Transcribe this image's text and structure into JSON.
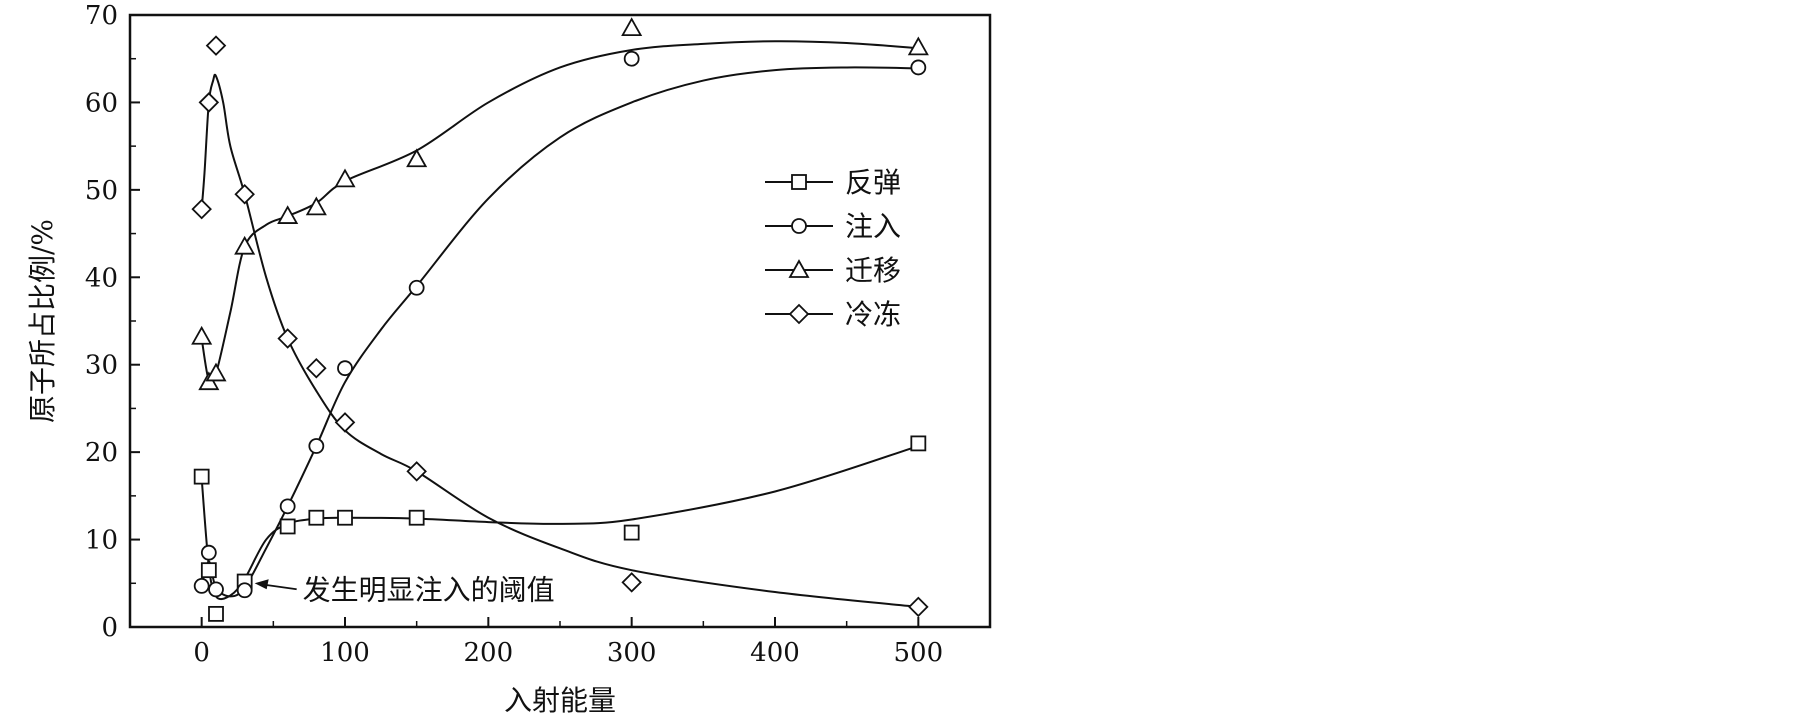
{
  "chart_data": {
    "type": "line",
    "xlabel": "入射能量",
    "ylabel": "原子所占比例/%",
    "xlim": [
      -50,
      550
    ],
    "ylim": [
      0,
      70
    ],
    "xticks": [
      0,
      100,
      200,
      300,
      400,
      500
    ],
    "yticks": [
      0,
      10,
      20,
      30,
      40,
      50,
      60,
      70
    ],
    "grid": false,
    "legend_position": "right",
    "series": [
      {
        "name": "反弹",
        "marker": "square",
        "x": [
          0,
          5,
          10,
          30,
          60,
          80,
          100,
          150,
          300,
          500
        ],
        "y": [
          17.2,
          6.5,
          1.5,
          5.2,
          11.5,
          12.5,
          12.5,
          12.5,
          10.8,
          21
        ]
      },
      {
        "name": "注入",
        "marker": "circle",
        "x": [
          0,
          5,
          10,
          30,
          60,
          80,
          100,
          150,
          300,
          500
        ],
        "y": [
          4.7,
          8.5,
          4.3,
          4.2,
          13.8,
          20.7,
          29.6,
          38.8,
          65,
          64
        ]
      },
      {
        "name": "迁移",
        "marker": "triangle",
        "x": [
          0,
          5,
          10,
          30,
          60,
          80,
          100,
          150,
          300,
          500
        ],
        "y": [
          33.2,
          28,
          29,
          43.5,
          47,
          48,
          51.2,
          53.5,
          68.5,
          66.3
        ]
      },
      {
        "name": "冷冻",
        "marker": "diamond",
        "x": [
          0,
          5,
          10,
          30,
          60,
          80,
          100,
          150,
          300,
          500
        ],
        "y": [
          47.8,
          60,
          66.5,
          49.5,
          33,
          29.6,
          23.4,
          17.8,
          5.1,
          2.3
        ]
      }
    ],
    "fitted_curves": [
      {
        "series": "反弹",
        "x": [
          0,
          5,
          10,
          20,
          30,
          45,
          60,
          80,
          100,
          150,
          200,
          250,
          300,
          400,
          500
        ],
        "y": [
          17,
          7,
          3.5,
          3.6,
          5.5,
          10,
          11.8,
          12.4,
          12.5,
          12.4,
          12,
          11.8,
          12.3,
          15.5,
          20.7
        ]
      },
      {
        "series": "注入",
        "x": [
          0,
          5,
          10,
          20,
          30,
          45,
          60,
          80,
          100,
          125,
          150,
          200,
          250,
          300,
          350,
          400,
          450,
          500
        ],
        "y": [
          4.7,
          7.5,
          4.5,
          3.5,
          4.5,
          9,
          13.8,
          20.7,
          28,
          34,
          39,
          49,
          56,
          60,
          62.5,
          63.7,
          64,
          63.9
        ]
      },
      {
        "series": "迁移",
        "x": [
          0,
          5,
          10,
          20,
          30,
          45,
          60,
          80,
          100,
          150,
          200,
          250,
          300,
          350,
          400,
          450,
          500
        ],
        "y": [
          33,
          28.2,
          29,
          36,
          43.5,
          46,
          47,
          48.5,
          51,
          54.5,
          60,
          64,
          66,
          66.7,
          67,
          66.8,
          66.2
        ]
      },
      {
        "series": "冷冻",
        "x": [
          0,
          2,
          5,
          8,
          10,
          15,
          20,
          30,
          45,
          60,
          80,
          100,
          125,
          150,
          200,
          250,
          300,
          400,
          500
        ],
        "y": [
          47.8,
          52,
          60,
          62.5,
          63,
          60,
          55,
          49.5,
          40,
          33,
          27,
          22.5,
          19.8,
          17.8,
          12.5,
          9,
          6.5,
          4,
          2.3
        ]
      }
    ],
    "annotation": {
      "text": "发生明显注入的阈值",
      "target_x": 30,
      "target_y": 5
    }
  }
}
